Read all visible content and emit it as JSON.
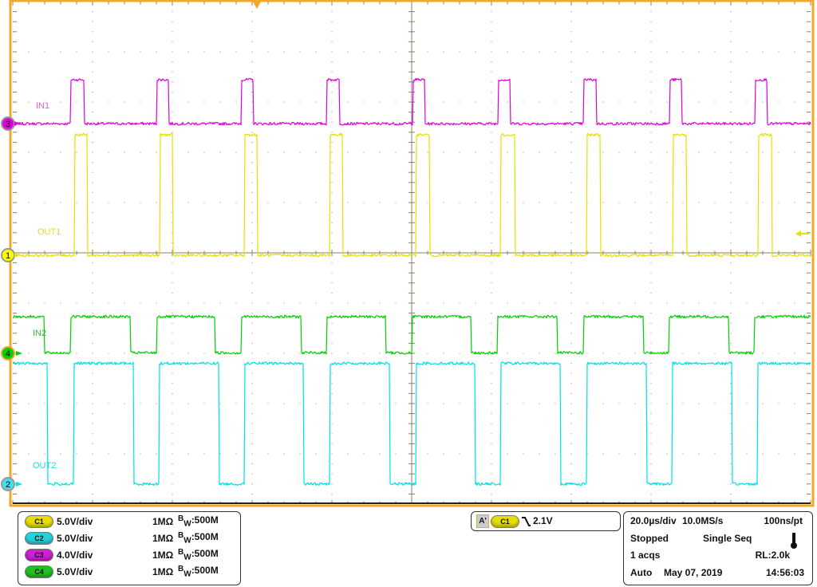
{
  "channel_labels": {
    "in1": "IN1",
    "out1": "OUT1",
    "in2": "IN2",
    "out2": "OUT2"
  },
  "markers": {
    "c1": "1",
    "c2": "2",
    "c3": "3",
    "c4": "4"
  },
  "channels": [
    {
      "id": "C1",
      "scale": "5.0V/div",
      "impedance": "1MΩ",
      "bw_prefix": "B",
      "bw_sub": "W",
      "bw": ":500M",
      "color": "#e6df00"
    },
    {
      "id": "C2",
      "scale": "5.0V/div",
      "impedance": "1MΩ",
      "bw_prefix": "B",
      "bw_sub": "W",
      "bw": ":500M",
      "color": "#22d3da"
    },
    {
      "id": "C3",
      "scale": "4.0V/div",
      "impedance": "1MΩ",
      "bw_prefix": "B",
      "bw_sub": "W",
      "bw": ":500M",
      "color": "#d020d0"
    },
    {
      "id": "C4",
      "scale": "5.0V/div",
      "impedance": "1MΩ",
      "bw_prefix": "B",
      "bw_sub": "W",
      "bw": ":500M",
      "color": "#20c020"
    }
  ],
  "trigger": {
    "mode_label": "A'",
    "source": "C1",
    "slope": "falling",
    "level": "2.1V"
  },
  "acquisition": {
    "timebase": "20.0µs/div",
    "sample_rate": "10.0MS/s",
    "resolution": "100ns/pt",
    "state": "Stopped",
    "sequence": "Single Seq",
    "acqs": "1 acqs",
    "record_length": "RL:2.0k",
    "trigger_mode": "Auto",
    "date": "May 07, 2019",
    "time": "14:56:03"
  },
  "colors": {
    "frame": "#f5a623",
    "grid": "#8a7f6a",
    "in1": "#e000e0",
    "out1": "#e6e000",
    "in2": "#00d000",
    "out2": "#00e0e8"
  },
  "chart_data": {
    "type": "line",
    "x_unit": "µs",
    "xlim": [
      0,
      200
    ],
    "x_divisions": 10,
    "y_divisions": 10,
    "grid": true,
    "series": [
      {
        "name": "IN1",
        "channel": "C3",
        "volts_per_div": 4.0,
        "low_level_v": 0,
        "high_level_v": 3.5,
        "high_intervals": [
          [
            14.4,
            17.8
          ],
          [
            36,
            39.2
          ],
          [
            57.4,
            60.4
          ],
          [
            78.8,
            82
          ],
          [
            100.4,
            103.4
          ],
          [
            121.8,
            124.8
          ],
          [
            143.2,
            146.4
          ],
          [
            164.6,
            167.6
          ],
          [
            186,
            189
          ]
        ]
      },
      {
        "name": "OUT1",
        "channel": "C1",
        "volts_per_div": 5.0,
        "low_level_v": 0,
        "high_level_v": 12,
        "high_intervals": [
          [
            15.4,
            18.6
          ],
          [
            36.8,
            40.2
          ],
          [
            58.2,
            61.4
          ],
          [
            79.6,
            82.8
          ],
          [
            101.2,
            104.6
          ],
          [
            122.4,
            126
          ],
          [
            144,
            147.4
          ],
          [
            165.4,
            168.8
          ],
          [
            186.8,
            190.2
          ]
        ]
      },
      {
        "name": "IN2",
        "channel": "C4",
        "volts_per_div": 5.0,
        "low_level_v": 0,
        "high_level_v": 3.6,
        "low_intervals": [
          [
            8,
            14.4
          ],
          [
            29.4,
            36
          ],
          [
            50.8,
            57.4
          ],
          [
            72.4,
            78.8
          ],
          [
            93.6,
            100.2
          ],
          [
            115,
            121.6
          ],
          [
            136.6,
            143.2
          ],
          [
            158,
            164.4
          ],
          [
            179.4,
            185.8
          ]
        ]
      },
      {
        "name": "OUT2",
        "channel": "C2",
        "volts_per_div": 5.0,
        "low_level_v": 0,
        "high_level_v": 12,
        "low_intervals": [
          [
            8.8,
            15.2
          ],
          [
            30.2,
            36.6
          ],
          [
            51.8,
            58.2
          ],
          [
            73,
            79.6
          ],
          [
            94.6,
            101.2
          ],
          [
            116,
            122.4
          ],
          [
            137.4,
            144
          ],
          [
            158.8,
            165.2
          ],
          [
            180.2,
            186.6
          ]
        ]
      }
    ]
  }
}
